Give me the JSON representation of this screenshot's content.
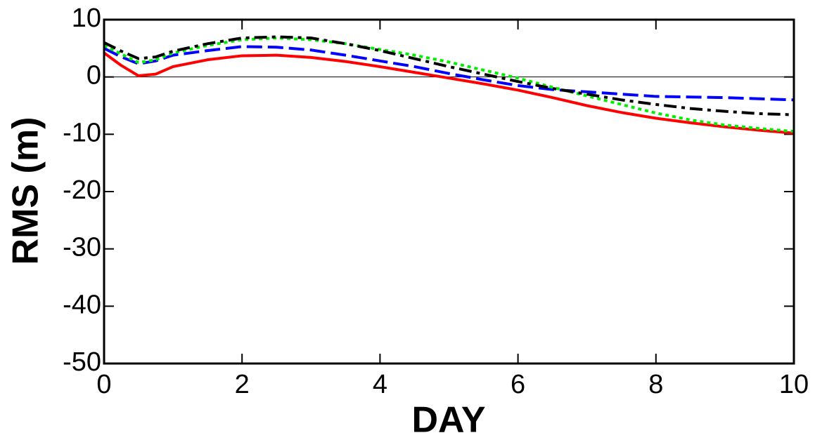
{
  "chart_data": {
    "type": "line",
    "x_label": "DAY",
    "y_label": "RMS (m)",
    "x": [
      0,
      0.25,
      0.5,
      0.75,
      1,
      1.5,
      2,
      2.5,
      3,
      3.5,
      4,
      4.5,
      5,
      5.5,
      6,
      6.5,
      7,
      7.5,
      8,
      8.5,
      9,
      9.5,
      10
    ],
    "series": [
      {
        "color": "#ff0000",
        "dash": "solid",
        "values": [
          4.2,
          2,
          0.2,
          0.5,
          1.8,
          3,
          3.7,
          3.8,
          3.4,
          2.7,
          1.8,
          0.8,
          -0.2,
          -1.2,
          -2.3,
          -3.6,
          -5,
          -6.2,
          -7.2,
          -8,
          -8.7,
          -9.3,
          -9.8
        ]
      },
      {
        "color": "#0000ff",
        "dash": "dashed",
        "values": [
          5,
          3.5,
          2.3,
          2.8,
          3.8,
          4.6,
          5.3,
          5.2,
          4.7,
          3.8,
          2.8,
          1.8,
          0.6,
          -0.5,
          -1.5,
          -2.2,
          -2.6,
          -3,
          -3.4,
          -3.5,
          -3.6,
          -3.8,
          -4
        ]
      },
      {
        "color": "#00ee00",
        "dash": "dotted",
        "values": [
          5.5,
          4,
          2.5,
          3,
          4.2,
          5.5,
          6.5,
          6.8,
          6.5,
          5.8,
          4.8,
          3.8,
          2.6,
          1.2,
          -0.2,
          -1.8,
          -3.3,
          -4.8,
          -6.3,
          -7.5,
          -8.4,
          -9,
          -9.5
        ]
      },
      {
        "color": "#000000",
        "dash": "dashdot",
        "values": [
          6,
          4.5,
          3.2,
          3.5,
          4.5,
          5.8,
          6.8,
          7,
          6.8,
          5.8,
          4.6,
          3.2,
          1.8,
          0.5,
          -0.8,
          -2,
          -3,
          -4,
          -4.8,
          -5.5,
          -6,
          -6.4,
          -6.6
        ]
      }
    ],
    "xlim": [
      0,
      10
    ],
    "xticks": [
      0,
      2,
      4,
      6,
      8,
      10
    ],
    "ylim": [
      -50,
      10
    ],
    "yticks": [
      -50,
      -40,
      -30,
      -20,
      -10,
      0,
      10
    ],
    "zero_line": true,
    "grid": false
  }
}
